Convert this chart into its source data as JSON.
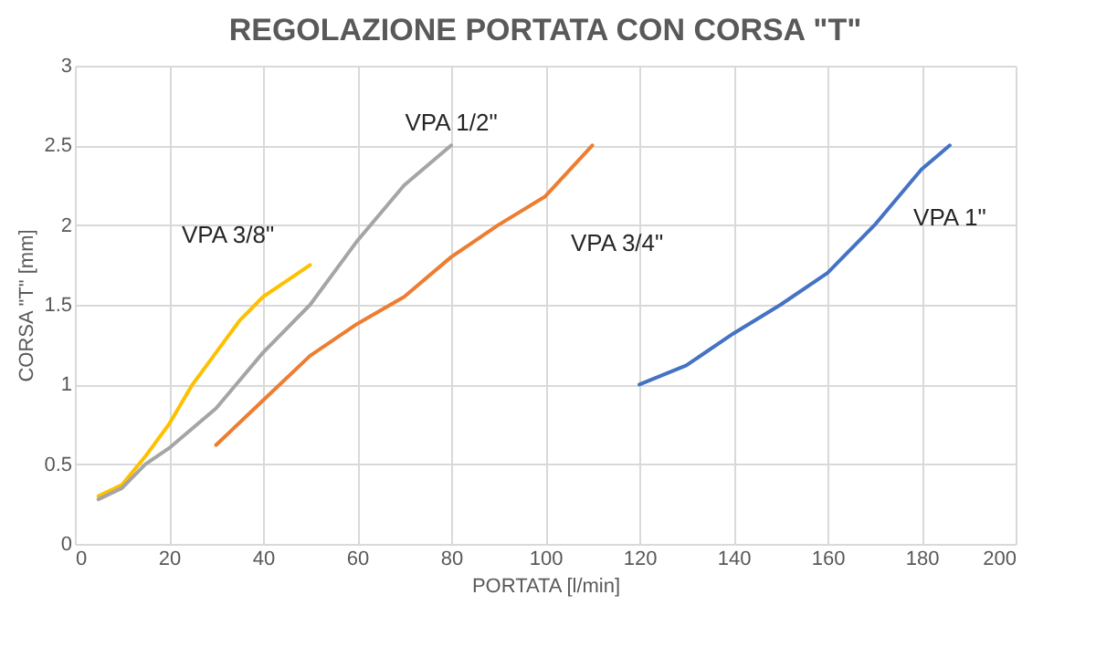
{
  "chart_data": {
    "type": "line",
    "title": "REGOLAZIONE PORTATA CON CORSA \"T\"",
    "xlabel": "PORTATA [l/min]",
    "ylabel": "CORSA \"T\" [mm]",
    "xlim": [
      0,
      200
    ],
    "xticks": [
      0,
      20,
      40,
      60,
      80,
      100,
      120,
      140,
      160,
      180,
      200
    ],
    "ylim": [
      0,
      3
    ],
    "yticks": [
      0,
      0.5,
      1,
      1.5,
      2,
      2.5,
      3
    ],
    "grid": true,
    "series": [
      {
        "name": "VPA 3/8\"",
        "color": "#ffc000",
        "x": [
          5,
          10,
          15,
          20,
          25,
          30,
          35,
          40,
          45,
          50
        ],
        "values": [
          0.3,
          0.37,
          0.55,
          0.75,
          1.0,
          1.2,
          1.4,
          1.55,
          1.65,
          1.75
        ]
      },
      {
        "name": "VPA 1/2\"",
        "color": "#a5a5a5",
        "x": [
          5,
          10,
          15,
          20,
          30,
          40,
          50,
          60,
          70,
          80
        ],
        "values": [
          0.28,
          0.35,
          0.5,
          0.6,
          0.85,
          1.2,
          1.5,
          1.9,
          2.25,
          2.5
        ]
      },
      {
        "name": "VPA 3/4\"",
        "color": "#ed7d31",
        "x": [
          30,
          40,
          50,
          60,
          70,
          80,
          90,
          100,
          110
        ],
        "values": [
          0.62,
          0.9,
          1.18,
          1.38,
          1.55,
          1.8,
          2.0,
          2.18,
          2.5
        ]
      },
      {
        "name": "VPA 1\"",
        "color": "#4472c4",
        "x": [
          120,
          130,
          140,
          150,
          160,
          170,
          180,
          186
        ],
        "values": [
          1.0,
          1.12,
          1.32,
          1.5,
          1.7,
          2.0,
          2.35,
          2.5
        ]
      }
    ]
  }
}
